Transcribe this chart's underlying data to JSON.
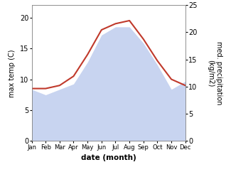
{
  "months": [
    "Jan",
    "Feb",
    "Mar",
    "Apr",
    "May",
    "Jun",
    "Jul",
    "Aug",
    "Sep",
    "Oct",
    "Nov",
    "Dec"
  ],
  "month_indices": [
    0,
    1,
    2,
    3,
    4,
    5,
    6,
    7,
    8,
    9,
    10,
    11
  ],
  "max_temp": [
    8.5,
    8.5,
    9.0,
    10.5,
    14.0,
    18.0,
    19.0,
    19.5,
    16.5,
    13.0,
    10.0,
    9.0
  ],
  "precipitation": [
    9.5,
    8.5,
    9.5,
    10.5,
    14.5,
    19.5,
    21.0,
    21.0,
    18.0,
    14.0,
    9.5,
    11.0
  ],
  "temp_color": "#c0392b",
  "precip_fill_color": "#c8d4f0",
  "left_ylabel": "max temp (C)",
  "right_ylabel": "med. precipitation\n(kg/m2)",
  "xlabel": "date (month)",
  "ylim_left": [
    0,
    22
  ],
  "ylim_right": [
    0,
    25
  ],
  "yticks_left": [
    0,
    5,
    10,
    15,
    20
  ],
  "yticks_right": [
    0,
    5,
    10,
    15,
    20,
    25
  ]
}
